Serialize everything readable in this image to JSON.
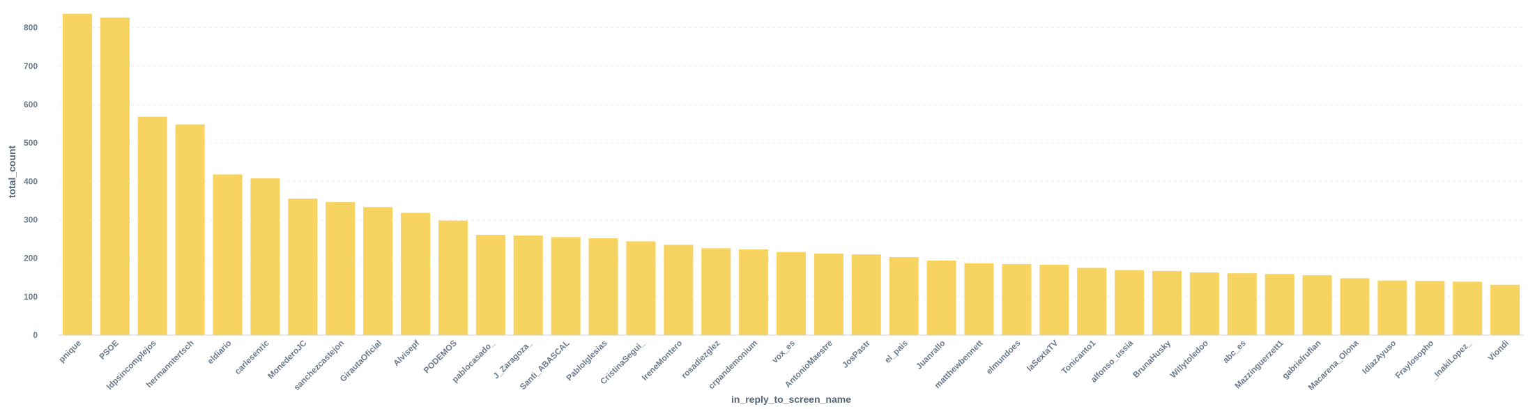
{
  "chart_data": {
    "type": "bar",
    "xlabel": "in_reply_to_screen_name",
    "ylabel": "total_count",
    "ylim": [
      0,
      850
    ],
    "yticks": [
      0,
      100,
      200,
      300,
      400,
      500,
      600,
      700,
      800
    ],
    "grid": true,
    "bar_color": "#f7d362",
    "categories": [
      "pnique",
      "PSOE",
      "ldpsincomplejos",
      "hermanntertsch",
      "eldiario",
      "carlesenric",
      "MonederoJC",
      "sanchezcastejon",
      "GirautaOficial",
      "Alvisepf",
      "PODEMOS",
      "pablocasado_",
      "J_Zaragoza_",
      "Santi_ABASCAL",
      "PabloIglesias",
      "CristinaSegui_",
      "IreneMontero",
      "rosadiezglez",
      "crpandemonium",
      "vox_es",
      "AntonioMaestre",
      "JosPastr",
      "el_pais",
      "Juanrallo",
      "matthewbennett",
      "elmundoes",
      "laSextaTV",
      "Tonicanto1",
      "alfonso_ussia",
      "BrunaHusky",
      "Willytoledoo",
      "abc_es",
      "Mazzinguerzett1",
      "gabrielrufian",
      "Macarena_Olona",
      "IdiazAyuso",
      "Fraylosopho",
      "_InakiLopez_",
      "Viondi"
    ],
    "x_tick_labels": [
      "pnique",
      "PSOE",
      "ldpsincomplejos",
      "hermanntertsch",
      "eldiario",
      "carlesenric",
      "MonederoJC",
      "sanchezcastejon",
      "GirautaOficial",
      "Alvisepf",
      "PODEMOS",
      "pablocasado_",
      "J_Zaragoza_",
      "Santi_ABASCAL",
      "PabloIglesias",
      "CristinaSegui_",
      "IreneMontero",
      "rosadiezglez",
      "crpandemonium",
      "vox_es",
      "AntonioMaestre",
      "JosPastr",
      "el_pais",
      "Juanrallo",
      "matthewbennett",
      "elmundoes",
      "laSextaTV",
      "Tonicanto1",
      "alfonso_ussia",
      "BrunaHusky",
      "Willytoledoo",
      "abc_es",
      "Mazzinguerzett1",
      "gabrielrufian",
      "Macarena_Olona",
      "IdiazAyuso",
      "Fraylosopho",
      "_InakiLopez_",
      "Viondi"
    ],
    "values": [
      836,
      826,
      568,
      548,
      418,
      408,
      355,
      346,
      333,
      318,
      298,
      261,
      259,
      255,
      252,
      244,
      235,
      226,
      223,
      216,
      212,
      210,
      203,
      194,
      187,
      185,
      183,
      175,
      169,
      167,
      163,
      161,
      159,
      156,
      148,
      142,
      141,
      139,
      131
    ]
  }
}
